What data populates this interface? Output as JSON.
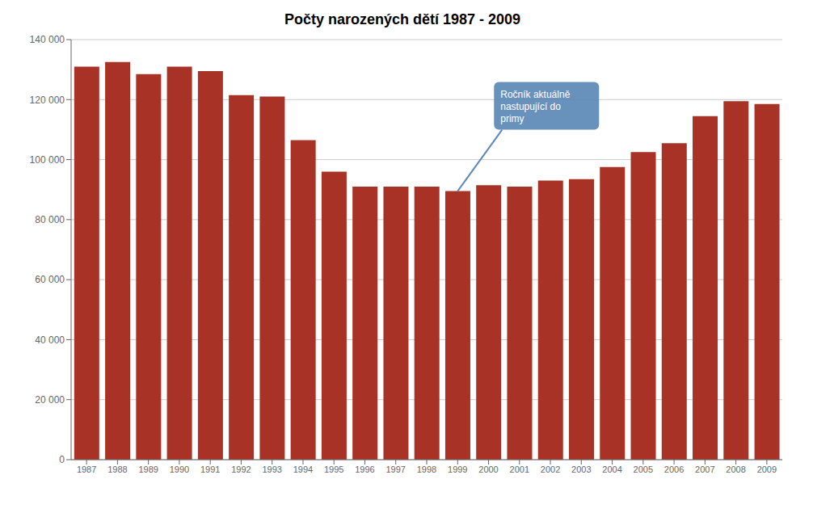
{
  "chart_data": {
    "type": "bar",
    "title": "Počty narozených dětí 1987 - 2009",
    "categories": [
      "1987",
      "1988",
      "1989",
      "1990",
      "1991",
      "1992",
      "1993",
      "1994",
      "1995",
      "1996",
      "1997",
      "1998",
      "1999",
      "2000",
      "2001",
      "2002",
      "2003",
      "2004",
      "2005",
      "2006",
      "2007",
      "2008",
      "2009"
    ],
    "values": [
      131000,
      132500,
      128500,
      131000,
      129500,
      121500,
      121000,
      106500,
      96000,
      91000,
      91000,
      91000,
      89500,
      91500,
      91000,
      93000,
      93500,
      97500,
      102500,
      105500,
      114500,
      119500,
      118500
    ],
    "color": "#a93226",
    "ylim": [
      0,
      140000
    ],
    "yticks": [
      0,
      {
        "value": 20000,
        "label": "20 000"
      },
      {
        "value": 40000,
        "label": "40 000"
      },
      {
        "value": 60000,
        "label": "60 000"
      },
      {
        "value": 80000,
        "label": "80 000"
      },
      {
        "value": 100000,
        "label": "100 000"
      },
      {
        "value": 120000,
        "label": "120 000"
      },
      {
        "value": 140000,
        "label": "140 000"
      }
    ],
    "grid": true,
    "annotations": [
      {
        "text": "Ročník aktuálně\nnastupující do\nprimy",
        "x": "1999",
        "y": 89500,
        "color": "#5b88b5"
      }
    ]
  }
}
